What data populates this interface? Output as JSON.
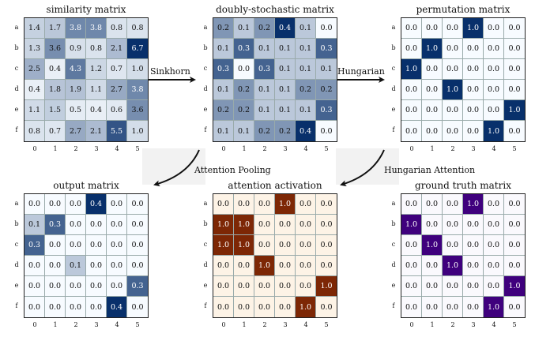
{
  "rows": [
    "a",
    "b",
    "c",
    "d",
    "e",
    "f"
  ],
  "cols": [
    "0",
    "1",
    "2",
    "3",
    "4",
    "5"
  ],
  "arrows": {
    "sinkhorn": "Sinkhorn",
    "hungarian": "Hungarian",
    "attention_pooling": "Attention Pooling",
    "hungarian_attention": "Hungarian Attention"
  },
  "panels": [
    {
      "title": "similarity matrix",
      "cmap": "blue",
      "vmax": 6.7,
      "values": [
        [
          "1.4",
          "1.7",
          "3.8",
          "3.8",
          "0.8",
          "0.8"
        ],
        [
          "1.3",
          "3.6",
          "0.9",
          "0.8",
          "2.1",
          "6.7"
        ],
        [
          "2.5",
          "0.4",
          "4.3",
          "1.2",
          "0.7",
          "1.0"
        ],
        [
          "0.4",
          "1.8",
          "1.9",
          "1.1",
          "2.7",
          "3.8"
        ],
        [
          "1.1",
          "1.5",
          "0.5",
          "0.4",
          "0.6",
          "3.6"
        ],
        [
          "0.8",
          "0.7",
          "2.7",
          "2.1",
          "5.5",
          "1.0"
        ]
      ]
    },
    {
      "title": "doubly-stochastic matrix",
      "cmap": "blue",
      "vmax": 0.4,
      "values": [
        [
          "0.2",
          "0.1",
          "0.2",
          "0.4",
          "0.1",
          "0.0"
        ],
        [
          "0.1",
          "0.3",
          "0.1",
          "0.1",
          "0.1",
          "0.3"
        ],
        [
          "0.3",
          "0.0",
          "0.3",
          "0.1",
          "0.1",
          "0.1"
        ],
        [
          "0.1",
          "0.2",
          "0.1",
          "0.1",
          "0.2",
          "0.2"
        ],
        [
          "0.2",
          "0.2",
          "0.1",
          "0.1",
          "0.1",
          "0.3"
        ],
        [
          "0.1",
          "0.1",
          "0.2",
          "0.2",
          "0.4",
          "0.0"
        ]
      ]
    },
    {
      "title": "permutation matrix",
      "cmap": "blue",
      "vmax": 1.0,
      "values": [
        [
          "0.0",
          "0.0",
          "0.0",
          "1.0",
          "0.0",
          "0.0"
        ],
        [
          "0.0",
          "1.0",
          "0.0",
          "0.0",
          "0.0",
          "0.0"
        ],
        [
          "1.0",
          "0.0",
          "0.0",
          "0.0",
          "0.0",
          "0.0"
        ],
        [
          "0.0",
          "0.0",
          "1.0",
          "0.0",
          "0.0",
          "0.0"
        ],
        [
          "0.0",
          "0.0",
          "0.0",
          "0.0",
          "0.0",
          "1.0"
        ],
        [
          "0.0",
          "0.0",
          "0.0",
          "0.0",
          "1.0",
          "0.0"
        ]
      ]
    },
    {
      "title": "output matrix",
      "cmap": "blue",
      "vmax": 0.4,
      "values": [
        [
          "0.0",
          "0.0",
          "0.0",
          "0.4",
          "0.0",
          "0.0"
        ],
        [
          "0.1",
          "0.3",
          "0.0",
          "0.0",
          "0.0",
          "0.0"
        ],
        [
          "0.3",
          "0.0",
          "0.0",
          "0.0",
          "0.0",
          "0.0"
        ],
        [
          "0.0",
          "0.0",
          "0.1",
          "0.0",
          "0.0",
          "0.0"
        ],
        [
          "0.0",
          "0.0",
          "0.0",
          "0.0",
          "0.0",
          "0.3"
        ],
        [
          "0.0",
          "0.0",
          "0.0",
          "0.0",
          "0.4",
          "0.0"
        ]
      ]
    },
    {
      "title": "attention activation",
      "cmap": "brown",
      "vmax": 1.0,
      "values": [
        [
          "0.0",
          "0.0",
          "0.0",
          "1.0",
          "0.0",
          "0.0"
        ],
        [
          "1.0",
          "1.0",
          "0.0",
          "0.0",
          "0.0",
          "0.0"
        ],
        [
          "1.0",
          "1.0",
          "0.0",
          "0.0",
          "0.0",
          "0.0"
        ],
        [
          "0.0",
          "0.0",
          "1.0",
          "0.0",
          "0.0",
          "0.0"
        ],
        [
          "0.0",
          "0.0",
          "0.0",
          "0.0",
          "0.0",
          "1.0"
        ],
        [
          "0.0",
          "0.0",
          "0.0",
          "0.0",
          "1.0",
          "0.0"
        ]
      ]
    },
    {
      "title": "ground truth matrix",
      "cmap": "purple",
      "vmax": 1.0,
      "values": [
        [
          "0.0",
          "0.0",
          "0.0",
          "1.0",
          "0.0",
          "0.0"
        ],
        [
          "1.0",
          "0.0",
          "0.0",
          "0.0",
          "0.0",
          "0.0"
        ],
        [
          "0.0",
          "1.0",
          "0.0",
          "0.0",
          "0.0",
          "0.0"
        ],
        [
          "0.0",
          "0.0",
          "1.0",
          "0.0",
          "0.0",
          "0.0"
        ],
        [
          "0.0",
          "0.0",
          "0.0",
          "0.0",
          "0.0",
          "1.0"
        ],
        [
          "0.0",
          "0.0",
          "0.0",
          "0.0",
          "1.0",
          "0.0"
        ]
      ]
    }
  ]
}
